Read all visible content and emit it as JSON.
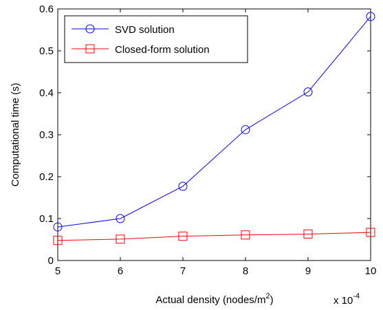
{
  "chart_data": {
    "type": "line",
    "title": "",
    "xlabel": "Actual density (nodes/m",
    "xlabel_superscript": "2",
    "xlabel_suffix": ")",
    "ylabel": "Computational time (s)",
    "x_multiplier_text": "x 10",
    "x_multiplier_exponent": "-4",
    "x": [
      5,
      6,
      7,
      8,
      9,
      10
    ],
    "xlim": [
      5,
      10
    ],
    "ylim": [
      0,
      0.6
    ],
    "xticks": [
      "5",
      "6",
      "7",
      "8",
      "9",
      "10"
    ],
    "yticks": [
      "0",
      "0.1",
      "0.2",
      "0.3",
      "0.4",
      "0.5",
      "0.6"
    ],
    "grid": false,
    "legend_position": "top-left",
    "series": [
      {
        "name": "SVD solution",
        "color": "#0000ff",
        "marker": "circle",
        "values": [
          0.08,
          0.1,
          0.177,
          0.312,
          0.402,
          0.582
        ]
      },
      {
        "name": "Closed-form solution",
        "color": "#ff0000",
        "marker": "square",
        "values": [
          0.048,
          0.051,
          0.058,
          0.061,
          0.063,
          0.067
        ]
      }
    ]
  }
}
